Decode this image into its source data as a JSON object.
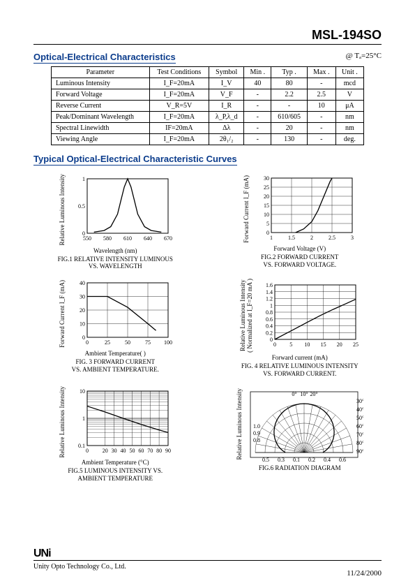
{
  "header": {
    "part_number": "MSL-194SO"
  },
  "spec_section": {
    "title": "Optical-Electrical Characteristics",
    "condition": "@  Tₐ=25°C",
    "columns": [
      "Parameter",
      "Test Conditions",
      "Symbol",
      "Min .",
      "Typ .",
      "Max .",
      "Unit ."
    ],
    "rows": [
      {
        "param": "Luminous Intensity",
        "cond": "I_F=20mA",
        "sym": "I_V",
        "min": "40",
        "typ": "80",
        "max": "-",
        "unit": "mcd"
      },
      {
        "param": "Forward Voltage",
        "cond": "I_F=20mA",
        "sym": "V_F",
        "min": "-",
        "typ": "2.2",
        "max": "2.5",
        "unit": "V"
      },
      {
        "param": "Reverse Current",
        "cond": "V_R=5V",
        "sym": "I_R",
        "min": "-",
        "typ": "-",
        "max": "10",
        "unit": "μA"
      },
      {
        "param": "Peak/Dominant Wavelength",
        "cond": "I_F=20mA",
        "sym": "λ_P,λ_d",
        "min": "-",
        "typ": "610/605",
        "max": "-",
        "unit": "nm"
      },
      {
        "param": "Spectral Linewidth",
        "cond": "IF=20mA",
        "sym": "Δλ",
        "min": "-",
        "typ": "20",
        "max": "-",
        "unit": "nm"
      },
      {
        "param": "Viewing Angle",
        "cond": "I_F=20mA",
        "sym": "2θ₁/₂",
        "min": "-",
        "typ": "130",
        "max": "-",
        "unit": "deg."
      }
    ]
  },
  "curves_section": {
    "title": "Typical  Optical-Electrical Characteristic Curves"
  },
  "fig1": {
    "type": "line",
    "ylabel": "Relative Luminous Intensity",
    "xlabel": "Wavelength (nm)",
    "caption": "FIG.1 RELATIVE INTENSITY LUMINOUS\nVS. WAVELENGTH",
    "xlim": [
      550,
      670
    ],
    "xticks": [
      550,
      580,
      610,
      640,
      670
    ],
    "ylim": [
      0,
      1
    ],
    "yticks": [
      0,
      0.5,
      1
    ],
    "grid": false,
    "stroke": "#000000",
    "points": [
      [
        560,
        0.02
      ],
      [
        575,
        0.05
      ],
      [
        585,
        0.12
      ],
      [
        595,
        0.35
      ],
      [
        600,
        0.6
      ],
      [
        605,
        0.85
      ],
      [
        610,
        1.0
      ],
      [
        615,
        0.85
      ],
      [
        620,
        0.6
      ],
      [
        625,
        0.35
      ],
      [
        635,
        0.12
      ],
      [
        645,
        0.05
      ],
      [
        660,
        0.02
      ]
    ]
  },
  "fig2": {
    "type": "line",
    "ylabel": "Forward Current I_F (mA)",
    "xlabel": "Forward Voltage  (V)",
    "caption": "FIG.2 FORWARD CURRENT\nVS. FORWARD VOLTAGE.",
    "xlim": [
      1.0,
      3.0
    ],
    "xticks": [
      1.0,
      1.5,
      2.0,
      2.5,
      3.0
    ],
    "ylim": [
      0,
      30
    ],
    "yticks": [
      0,
      5,
      10,
      15,
      20,
      25,
      30
    ],
    "grid": true,
    "grid_color": "#000000",
    "stroke": "#000000",
    "points": [
      [
        1.6,
        0
      ],
      [
        1.8,
        2
      ],
      [
        2.0,
        6
      ],
      [
        2.15,
        12
      ],
      [
        2.3,
        20
      ],
      [
        2.45,
        28
      ],
      [
        2.5,
        30
      ]
    ]
  },
  "fig3": {
    "type": "line",
    "ylabel": "Forward Current I_F  (mA)",
    "xlabel": "Ambient Temperature(    )",
    "caption": "FIG. 3  FORWARD CURRENT\nVS. AMBIENT TEMPERATURE.",
    "xlim": [
      0,
      100
    ],
    "xticks": [
      0,
      25,
      50,
      75,
      100
    ],
    "ylim": [
      0,
      40
    ],
    "yticks": [
      0,
      10,
      20,
      30,
      40
    ],
    "grid": true,
    "grid_color": "#000000",
    "stroke": "#000000",
    "points": [
      [
        0,
        30
      ],
      [
        25,
        30
      ],
      [
        50,
        22
      ],
      [
        75,
        10
      ],
      [
        85,
        5
      ]
    ]
  },
  "fig4": {
    "type": "line",
    "ylabel": "Relative Luminous Intensity\n( Normalized at I_F=20 mA )",
    "xlabel": "Forward current (mA)",
    "caption": "FIG. 4 RELATIVE LUMINOUS INTENSITY\nVS. FORWARD CURRENT.",
    "xlim": [
      0,
      25
    ],
    "xticks": [
      0,
      5,
      10,
      15,
      20,
      25
    ],
    "ylim": [
      0,
      1.6
    ],
    "yticks": [
      0,
      0.2,
      0.4,
      0.6,
      0.8,
      1.0,
      1.2,
      1.4,
      1.6
    ],
    "grid": true,
    "grid_color": "#000000",
    "stroke": "#000000",
    "points": [
      [
        0,
        0
      ],
      [
        3,
        0.15
      ],
      [
        6,
        0.3
      ],
      [
        10,
        0.5
      ],
      [
        14,
        0.7
      ],
      [
        18,
        0.88
      ],
      [
        22,
        1.05
      ],
      [
        25,
        1.18
      ]
    ]
  },
  "fig5": {
    "type": "line",
    "yscale": "log",
    "ylabel": "Relative Luminous Intensity",
    "xlabel": "Ambient Temperature (°C)",
    "caption": "FIG.5 LUMINOUS INTENSITY VS.\nAMBIENT TEMPERATURE",
    "xlim": [
      0,
      90
    ],
    "xticks": [
      0,
      20,
      30,
      40,
      50,
      60,
      70,
      80,
      90
    ],
    "ylim": [
      0.1,
      10
    ],
    "yticks": [
      0.1,
      1,
      10
    ],
    "grid": true,
    "grid_color": "#000000",
    "stroke": "#000000",
    "points": [
      [
        0,
        2.8
      ],
      [
        20,
        1.7
      ],
      [
        40,
        1.0
      ],
      [
        60,
        0.6
      ],
      [
        80,
        0.37
      ],
      [
        90,
        0.3
      ]
    ]
  },
  "fig6": {
    "type": "radiation",
    "ylabel": "Relative Luminous Intensity",
    "caption": "FIG.6 RADIATION DIAGRAM",
    "angle_labels_top": [
      "0°",
      "10°",
      "20°"
    ],
    "angle_labels_right": [
      "30°",
      "40°",
      "50°",
      "60°",
      "70°",
      "80°",
      "90°"
    ],
    "radial_labels_left": [
      "1.0",
      "0.9",
      "0.8"
    ],
    "xaxis_labels": [
      "0.5",
      "0.3",
      "0.1",
      "0.2",
      "0.4",
      "0.6"
    ],
    "stroke": "#000000"
  },
  "chart_common": {
    "width": 150,
    "height": 100,
    "margin": {
      "l": 28,
      "r": 6,
      "t": 6,
      "b": 16
    },
    "background": "#ffffff",
    "axis_color": "#000000",
    "tick_fontsize": 8
  },
  "footer": {
    "logo": "UNi",
    "company": "Unity Opto Technology Co., Ltd.",
    "date": "11/24/2000"
  }
}
